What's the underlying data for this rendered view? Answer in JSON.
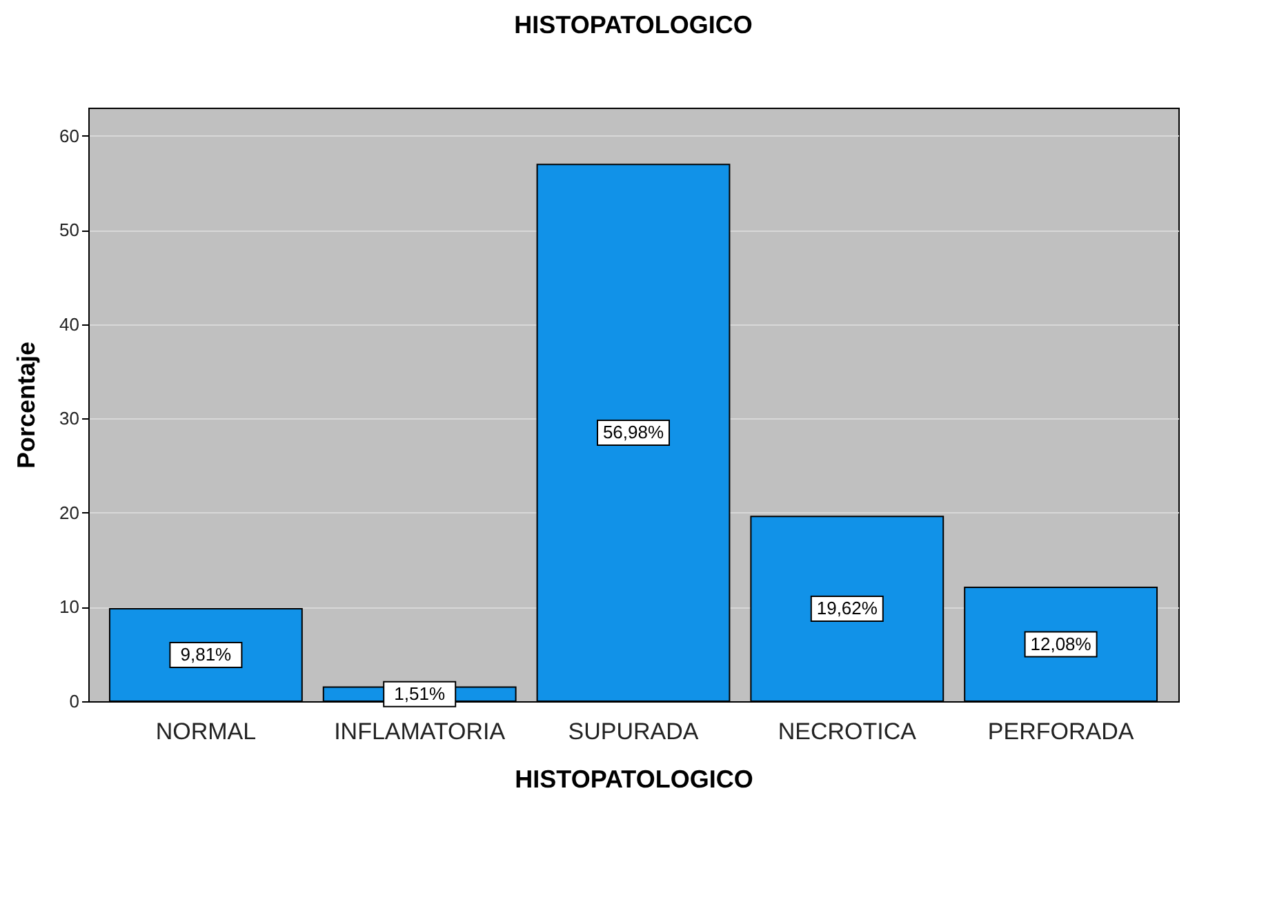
{
  "chart_data": {
    "type": "bar",
    "title": "HISTOPATOLOGICO",
    "xlabel": "HISTOPATOLOGICO",
    "ylabel": "Porcentaje",
    "categories": [
      "NORMAL",
      "INFLAMATORIA",
      "SUPURADA",
      "NECROTICA",
      "PERFORADA"
    ],
    "values": [
      9.81,
      1.51,
      56.98,
      19.62,
      12.08
    ],
    "value_labels": [
      "9,81%",
      "1,51%",
      "56,98%",
      "19,62%",
      "12,08%"
    ],
    "color": "#1192e8",
    "ylim": [
      0,
      63
    ],
    "yticks": [
      0,
      10,
      20,
      30,
      40,
      50,
      60
    ],
    "grid": "y"
  }
}
